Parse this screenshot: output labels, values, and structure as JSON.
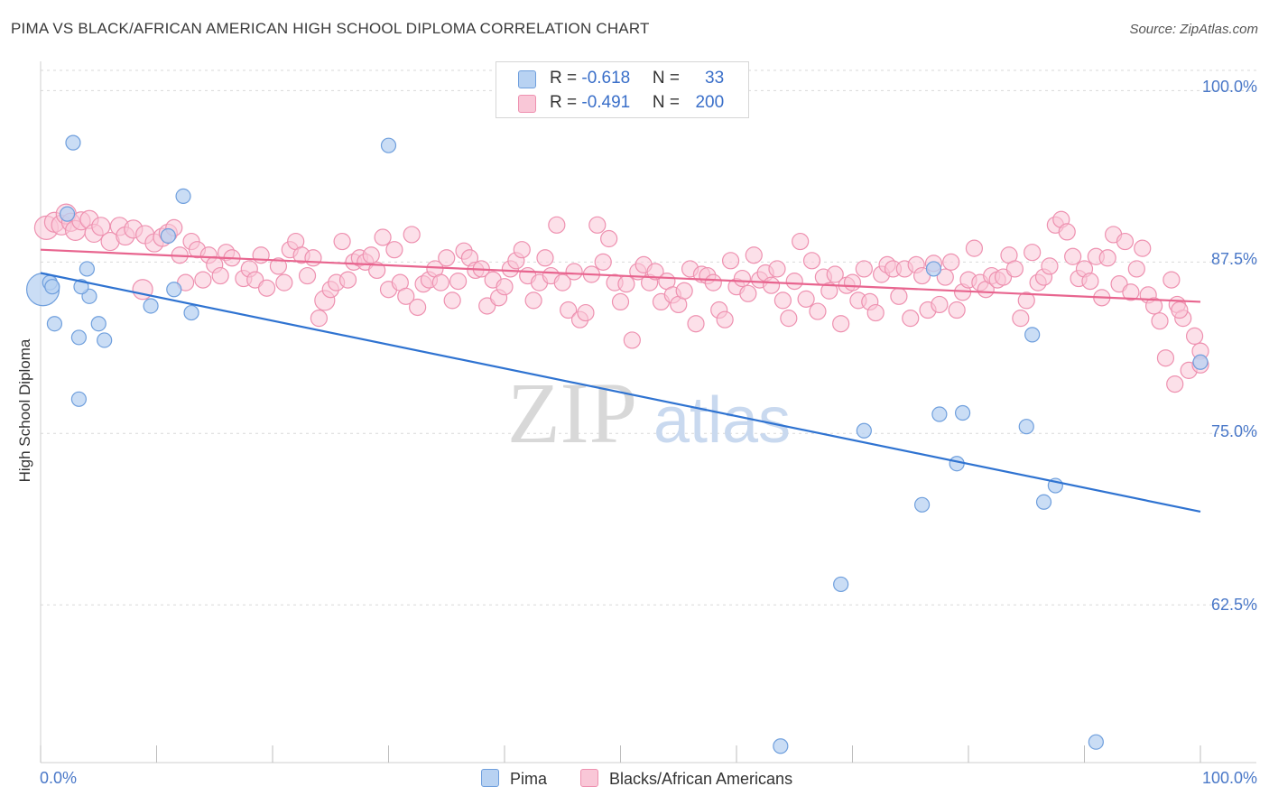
{
  "title": "PIMA VS BLACK/AFRICAN AMERICAN HIGH SCHOOL DIPLOMA CORRELATION CHART",
  "source": "Source: ZipAtlas.com",
  "watermark": {
    "zip": "ZIP",
    "atlas": "atlas"
  },
  "colors": {
    "pima_fill": "#b8d2f2",
    "pima_stroke": "#6f9fdd",
    "pima_line": "#2f73d1",
    "black_fill": "#f9c7d7",
    "black_stroke": "#ee91b0",
    "black_line": "#e8658f",
    "tick_text": "#4a78c8",
    "grid": "#d9d9d9"
  },
  "legend": {
    "rows": [
      {
        "r_label": "R = ",
        "r_value": "-0.618",
        "n_label": "N = ",
        "n_value": "33"
      },
      {
        "r_label": "R = ",
        "r_value": "-0.491",
        "n_label": "N = ",
        "n_value": "200"
      }
    ]
  },
  "chart_data": {
    "type": "scatter",
    "title": "PIMA VS BLACK/AFRICAN AMERICAN HIGH SCHOOL DIPLOMA CORRELATION CHART",
    "xlabel": "",
    "ylabel": "High School Diploma",
    "xlim": [
      0,
      100
    ],
    "ylim": [
      51,
      102
    ],
    "x_tick_labels": [
      "0.0%",
      "100.0%"
    ],
    "y_ticks": [
      {
        "value": 100,
        "label": "100.0%"
      },
      {
        "value": 87.5,
        "label": "87.5%"
      },
      {
        "value": 75,
        "label": "75.0%"
      },
      {
        "value": 62.5,
        "label": "62.5%"
      }
    ],
    "series": [
      {
        "name": "Pima",
        "r": -0.618,
        "n": 33,
        "trend": {
          "x": [
            0,
            100
          ],
          "y": [
            86.7,
            69.3
          ]
        },
        "points": [
          [
            0.2,
            85.5,
            18
          ],
          [
            0.8,
            86.0,
            8
          ],
          [
            2.8,
            96.2,
            8
          ],
          [
            2.3,
            91.0,
            8
          ],
          [
            1.2,
            83.0,
            8
          ],
          [
            4.0,
            87.0,
            8
          ],
          [
            4.2,
            85.0,
            8
          ],
          [
            3.5,
            85.7,
            8
          ],
          [
            3.3,
            82.0,
            8
          ],
          [
            5.5,
            81.8,
            8
          ],
          [
            5.0,
            83.0,
            8
          ],
          [
            3.3,
            77.5,
            8
          ],
          [
            9.5,
            84.3,
            8
          ],
          [
            11.0,
            89.4,
            8
          ],
          [
            12.3,
            92.3,
            8
          ],
          [
            11.5,
            85.5,
            8
          ],
          [
            13.0,
            83.8,
            8
          ],
          [
            30.0,
            96.0,
            8
          ],
          [
            77.0,
            87.0,
            8
          ],
          [
            63.8,
            52.2,
            8
          ],
          [
            69.0,
            64.0,
            8
          ],
          [
            71.0,
            75.2,
            8
          ],
          [
            76.0,
            69.8,
            8
          ],
          [
            77.5,
            76.4,
            8
          ],
          [
            79.5,
            76.5,
            8
          ],
          [
            79.0,
            72.8,
            8
          ],
          [
            85.0,
            75.5,
            8
          ],
          [
            85.5,
            82.2,
            8
          ],
          [
            86.5,
            70.0,
            8
          ],
          [
            87.5,
            71.2,
            8
          ],
          [
            91.0,
            52.5,
            8
          ],
          [
            100.0,
            80.2,
            8
          ],
          [
            1.0,
            85.7,
            8
          ]
        ]
      },
      {
        "name": "Blacks/African Americans",
        "r": -0.491,
        "n": 200,
        "trend": {
          "x": [
            0,
            100
          ],
          "y": [
            88.4,
            84.6
          ]
        },
        "points": [
          [
            0.5,
            90.0,
            13
          ],
          [
            1.2,
            90.4,
            11
          ],
          [
            1.8,
            90.2,
            11
          ],
          [
            2.2,
            91.0,
            11
          ],
          [
            2.6,
            90.4,
            10
          ],
          [
            3.0,
            89.8,
            11
          ],
          [
            3.5,
            90.5,
            10
          ],
          [
            4.2,
            90.6,
            10
          ],
          [
            4.6,
            89.6,
            10
          ],
          [
            5.2,
            90.1,
            10
          ],
          [
            6.0,
            89.0,
            10
          ],
          [
            6.8,
            90.1,
            10
          ],
          [
            7.3,
            89.4,
            10
          ],
          [
            8.0,
            89.9,
            10
          ],
          [
            9.0,
            89.5,
            10
          ],
          [
            9.8,
            88.9,
            10
          ],
          [
            8.8,
            85.5,
            11
          ],
          [
            10.5,
            89.3,
            10
          ],
          [
            11.0,
            89.6,
            10
          ],
          [
            11.5,
            90.0,
            9
          ],
          [
            12.0,
            88.0,
            9
          ],
          [
            12.5,
            86.0,
            9
          ],
          [
            13.0,
            89.0,
            9
          ],
          [
            13.5,
            88.4,
            9
          ],
          [
            14.0,
            86.2,
            9
          ],
          [
            14.5,
            88.0,
            9
          ],
          [
            15.0,
            87.3,
            9
          ],
          [
            15.5,
            86.5,
            9
          ],
          [
            16.0,
            88.2,
            9
          ],
          [
            16.5,
            87.8,
            9
          ],
          [
            17.5,
            86.3,
            9
          ],
          [
            18.0,
            87.0,
            9
          ],
          [
            18.5,
            86.2,
            9
          ],
          [
            19.0,
            88.0,
            9
          ],
          [
            19.5,
            85.6,
            9
          ],
          [
            20.5,
            87.2,
            9
          ],
          [
            21.0,
            86.0,
            9
          ],
          [
            21.5,
            88.4,
            9
          ],
          [
            22.0,
            89.0,
            9
          ],
          [
            22.5,
            88.0,
            9
          ],
          [
            23.0,
            86.5,
            9
          ],
          [
            23.5,
            87.8,
            9
          ],
          [
            24.0,
            83.4,
            9
          ],
          [
            24.5,
            84.7,
            11
          ],
          [
            25.0,
            85.5,
            9
          ],
          [
            25.5,
            86.0,
            9
          ],
          [
            26.0,
            89.0,
            9
          ],
          [
            26.5,
            86.2,
            9
          ],
          [
            27.0,
            87.5,
            9
          ],
          [
            27.5,
            87.8,
            9
          ],
          [
            28.0,
            87.5,
            9
          ],
          [
            28.5,
            88.0,
            9
          ],
          [
            29.0,
            86.9,
            9
          ],
          [
            29.5,
            89.3,
            9
          ],
          [
            30.0,
            85.5,
            9
          ],
          [
            30.5,
            88.4,
            9
          ],
          [
            31.0,
            86.0,
            9
          ],
          [
            31.5,
            85.0,
            9
          ],
          [
            32.0,
            89.5,
            9
          ],
          [
            32.5,
            84.2,
            9
          ],
          [
            33.0,
            85.9,
            9
          ],
          [
            33.5,
            86.2,
            9
          ],
          [
            34.0,
            87.0,
            9
          ],
          [
            34.5,
            86.0,
            9
          ],
          [
            35.0,
            87.8,
            9
          ],
          [
            35.5,
            84.7,
            9
          ],
          [
            36.0,
            86.1,
            9
          ],
          [
            36.5,
            88.3,
            9
          ],
          [
            37.0,
            87.8,
            9
          ],
          [
            37.5,
            86.9,
            9
          ],
          [
            38.0,
            87.0,
            9
          ],
          [
            38.5,
            84.3,
            9
          ],
          [
            39.0,
            86.2,
            9
          ],
          [
            39.5,
            84.9,
            9
          ],
          [
            40.0,
            85.7,
            9
          ],
          [
            40.5,
            87.0,
            9
          ],
          [
            41.0,
            87.6,
            9
          ],
          [
            41.5,
            88.4,
            9
          ],
          [
            42.0,
            86.5,
            9
          ],
          [
            42.5,
            84.7,
            9
          ],
          [
            43.0,
            86.0,
            9
          ],
          [
            43.5,
            87.8,
            9
          ],
          [
            44.0,
            86.5,
            9
          ],
          [
            44.5,
            90.2,
            9
          ],
          [
            45.0,
            86.0,
            9
          ],
          [
            45.5,
            84.0,
            9
          ],
          [
            46.0,
            86.8,
            9
          ],
          [
            46.5,
            83.3,
            9
          ],
          [
            47.0,
            83.8,
            9
          ],
          [
            47.5,
            86.6,
            9
          ],
          [
            48.0,
            90.2,
            9
          ],
          [
            48.5,
            87.5,
            9
          ],
          [
            49.0,
            89.2,
            9
          ],
          [
            49.5,
            86.0,
            9
          ],
          [
            50.0,
            84.6,
            9
          ],
          [
            50.5,
            85.9,
            9
          ],
          [
            51.0,
            81.8,
            9
          ],
          [
            51.5,
            86.8,
            9
          ],
          [
            52.0,
            87.3,
            9
          ],
          [
            52.5,
            86.0,
            9
          ],
          [
            53.0,
            86.8,
            9
          ],
          [
            53.5,
            84.6,
            9
          ],
          [
            54.0,
            86.1,
            9
          ],
          [
            54.5,
            85.1,
            9
          ],
          [
            55.0,
            84.4,
            9
          ],
          [
            55.5,
            85.4,
            9
          ],
          [
            56.0,
            87.0,
            9
          ],
          [
            56.5,
            83.0,
            9
          ],
          [
            57.0,
            86.6,
            9
          ],
          [
            57.5,
            86.5,
            9
          ],
          [
            58.0,
            86.0,
            9
          ],
          [
            58.5,
            84.0,
            9
          ],
          [
            59.0,
            83.3,
            9
          ],
          [
            59.5,
            87.6,
            9
          ],
          [
            60.0,
            85.7,
            9
          ],
          [
            60.5,
            86.3,
            9
          ],
          [
            61.0,
            85.2,
            9
          ],
          [
            61.5,
            88.0,
            9
          ],
          [
            62.0,
            86.2,
            9
          ],
          [
            62.5,
            86.7,
            9
          ],
          [
            63.0,
            85.8,
            9
          ],
          [
            63.5,
            87.0,
            9
          ],
          [
            64.0,
            84.7,
            9
          ],
          [
            64.5,
            83.4,
            9
          ],
          [
            65.0,
            86.1,
            9
          ],
          [
            65.5,
            89.0,
            9
          ],
          [
            66.0,
            84.8,
            9
          ],
          [
            66.5,
            87.6,
            9
          ],
          [
            67.0,
            83.9,
            9
          ],
          [
            67.5,
            86.4,
            9
          ],
          [
            68.0,
            85.4,
            9
          ],
          [
            68.5,
            86.6,
            9
          ],
          [
            69.0,
            83.0,
            9
          ],
          [
            69.5,
            85.8,
            9
          ],
          [
            70.0,
            86.0,
            9
          ],
          [
            70.5,
            84.7,
            9
          ],
          [
            71.0,
            87.0,
            9
          ],
          [
            71.5,
            84.6,
            9
          ],
          [
            72.0,
            83.8,
            9
          ],
          [
            72.5,
            86.6,
            9
          ],
          [
            73.0,
            87.3,
            9
          ],
          [
            73.5,
            87.0,
            9
          ],
          [
            74.0,
            85.0,
            9
          ],
          [
            74.5,
            87.0,
            9
          ],
          [
            75.0,
            83.4,
            9
          ],
          [
            75.5,
            87.3,
            9
          ],
          [
            76.0,
            86.5,
            9
          ],
          [
            76.5,
            84.0,
            9
          ],
          [
            77.0,
            87.4,
            9
          ],
          [
            77.5,
            84.4,
            9
          ],
          [
            78.0,
            86.4,
            9
          ],
          [
            78.5,
            87.5,
            9
          ],
          [
            79.0,
            84.0,
            9
          ],
          [
            79.5,
            85.3,
            9
          ],
          [
            80.0,
            86.2,
            9
          ],
          [
            80.5,
            88.5,
            9
          ],
          [
            81.0,
            86.0,
            9
          ],
          [
            81.5,
            85.5,
            9
          ],
          [
            82.0,
            86.5,
            9
          ],
          [
            82.5,
            86.2,
            9
          ],
          [
            83.0,
            86.4,
            9
          ],
          [
            83.5,
            88.0,
            9
          ],
          [
            84.0,
            87.0,
            9
          ],
          [
            84.5,
            83.4,
            9
          ],
          [
            85.0,
            84.7,
            9
          ],
          [
            85.5,
            88.2,
            9
          ],
          [
            86.0,
            86.0,
            9
          ],
          [
            86.5,
            86.4,
            9
          ],
          [
            87.0,
            87.2,
            9
          ],
          [
            87.5,
            90.2,
            9
          ],
          [
            88.0,
            90.6,
            9
          ],
          [
            88.5,
            89.7,
            9
          ],
          [
            89.0,
            87.9,
            9
          ],
          [
            89.5,
            86.3,
            9
          ],
          [
            90.0,
            87.0,
            9
          ],
          [
            90.5,
            86.1,
            9
          ],
          [
            91.0,
            87.9,
            9
          ],
          [
            91.5,
            84.9,
            9
          ],
          [
            92.0,
            87.8,
            9
          ],
          [
            92.5,
            89.5,
            9
          ],
          [
            93.0,
            85.9,
            9
          ],
          [
            93.5,
            89.0,
            9
          ],
          [
            94.0,
            85.3,
            9
          ],
          [
            94.5,
            87.0,
            9
          ],
          [
            95.0,
            88.5,
            9
          ],
          [
            95.5,
            85.1,
            9
          ],
          [
            96.0,
            84.3,
            9
          ],
          [
            96.5,
            83.2,
            9
          ],
          [
            97.0,
            80.5,
            9
          ],
          [
            97.5,
            86.2,
            9
          ],
          [
            98.0,
            84.4,
            9
          ],
          [
            98.5,
            83.4,
            9
          ],
          [
            99.0,
            79.6,
            9
          ],
          [
            99.5,
            82.1,
            9
          ],
          [
            100.0,
            81.0,
            9
          ],
          [
            100.0,
            80.0,
            9
          ],
          [
            97.8,
            78.6,
            9
          ],
          [
            98.2,
            84.0,
            9
          ]
        ]
      }
    ]
  },
  "axes": {
    "ylabel": "High School Diploma",
    "x_left": "0.0%",
    "x_right": "100.0%",
    "y_labels": [
      "100.0%",
      "87.5%",
      "75.0%",
      "62.5%"
    ]
  },
  "bottom_legend": {
    "pima": "Pima",
    "black": "Blacks/African Americans"
  }
}
